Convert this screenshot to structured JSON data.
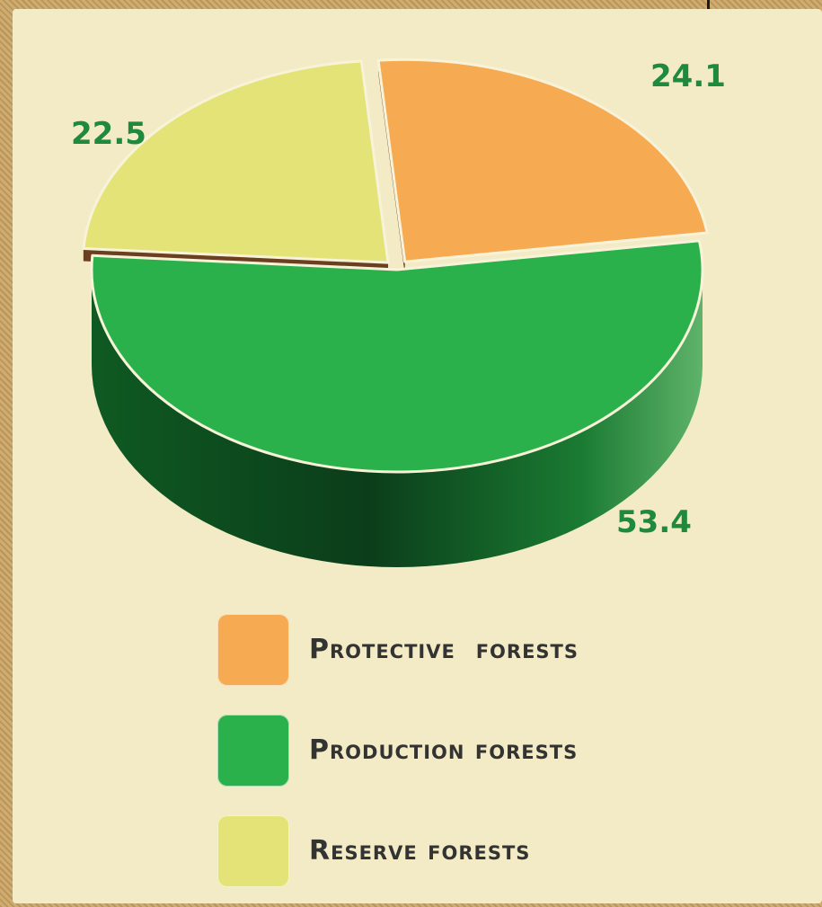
{
  "chart_data": {
    "type": "pie",
    "categories": [
      "Protective forests",
      "Production forests",
      "Reserve forests"
    ],
    "values": [
      24.1,
      53.4,
      22.5
    ],
    "colors": [
      "#f6ab52",
      "#2bb14b",
      "#e3e378"
    ],
    "labels": [
      "24.1",
      "53.4",
      "22.5"
    ],
    "legend": [
      {
        "label": "Protective  forests",
        "color": "#f6ab52"
      },
      {
        "label": "Production forests",
        "color": "#2bb14b"
      },
      {
        "label": "Reserve forests",
        "color": "#e3e378"
      }
    ]
  }
}
